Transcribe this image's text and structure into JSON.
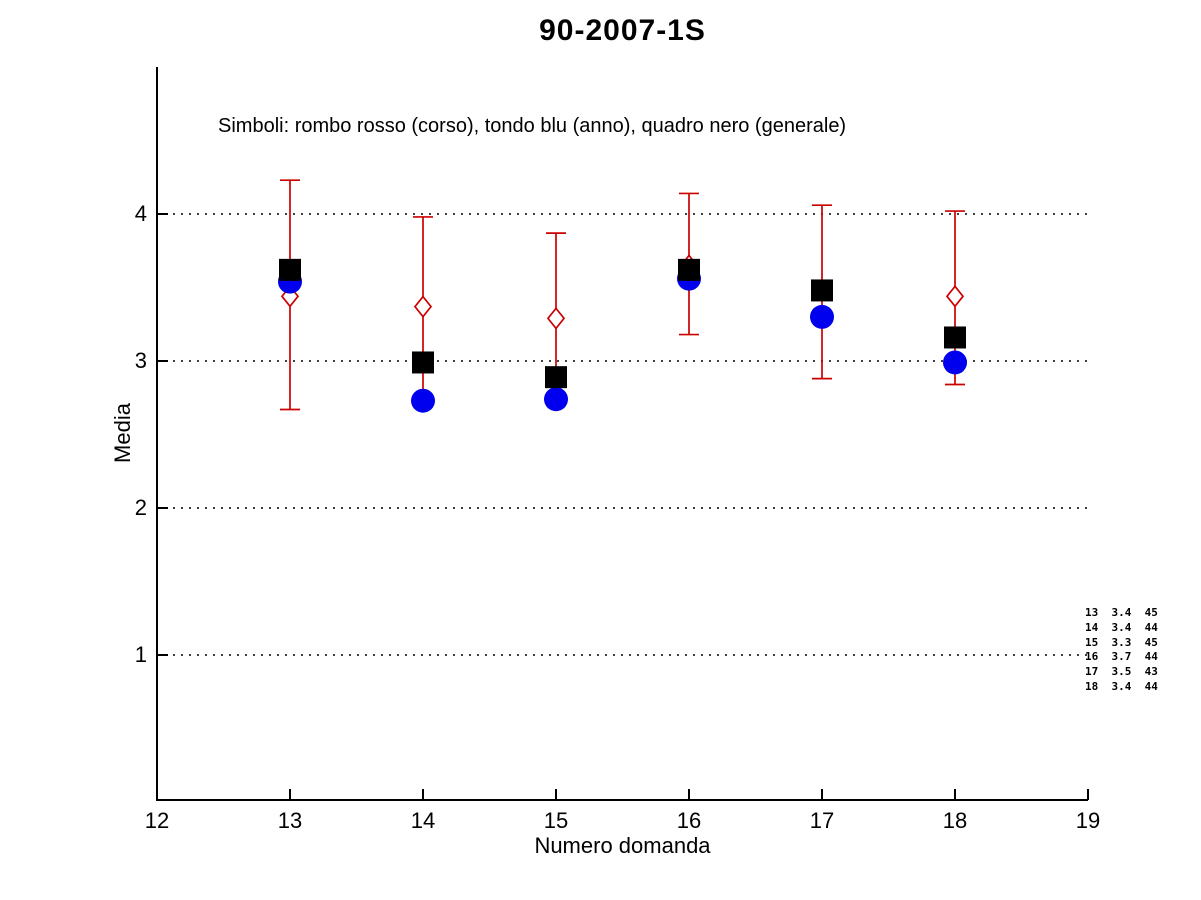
{
  "figure": {
    "background": "#ffffff",
    "axis_color": "#000000"
  },
  "chart_data": {
    "type": "scatter",
    "title": "90-2007-1S",
    "subtitle": "Simboli: rombo rosso (corso), tondo blu (anno), quadro nero (generale)",
    "xlabel": "Numero domanda",
    "ylabel": "Media",
    "xlim": [
      12,
      19
    ],
    "ylim": [
      0,
      5
    ],
    "x_ticks": [
      12,
      13,
      14,
      15,
      16,
      17,
      18,
      19
    ],
    "y_ticks": [
      1,
      2,
      3,
      4
    ],
    "grid": {
      "horizontal": true,
      "style": "dotted",
      "color": "#000000"
    },
    "legend_position": "none (described in subtitle)",
    "x": [
      13,
      14,
      15,
      16,
      17,
      18
    ],
    "series": [
      {
        "name": "corso",
        "symbol_description": "rombo rosso",
        "marker": "open-diamond",
        "color": "#cc0000",
        "values": [
          3.44,
          3.37,
          3.29,
          3.65,
          3.48,
          3.44
        ],
        "err_hi": [
          4.23,
          3.98,
          3.87,
          4.14,
          4.06,
          4.02
        ],
        "err_lo": [
          2.67,
          2.73,
          2.74,
          3.18,
          2.88,
          2.84
        ]
      },
      {
        "name": "anno",
        "symbol_description": "tondo blu",
        "marker": "filled-circle",
        "color": "#0000ee",
        "values": [
          3.54,
          2.73,
          2.74,
          3.56,
          3.3,
          2.99
        ]
      },
      {
        "name": "generale",
        "symbol_description": "quadro nero",
        "marker": "filled-square",
        "color": "#000000",
        "values": [
          3.62,
          2.99,
          2.89,
          3.62,
          3.48,
          3.16
        ]
      }
    ],
    "annotation": {
      "lines": [
        "13  3.4  45",
        "14  3.4  44",
        "15  3.3  45",
        "16  3.7  44",
        "17  3.5  43",
        "18  3.4  44"
      ]
    }
  }
}
